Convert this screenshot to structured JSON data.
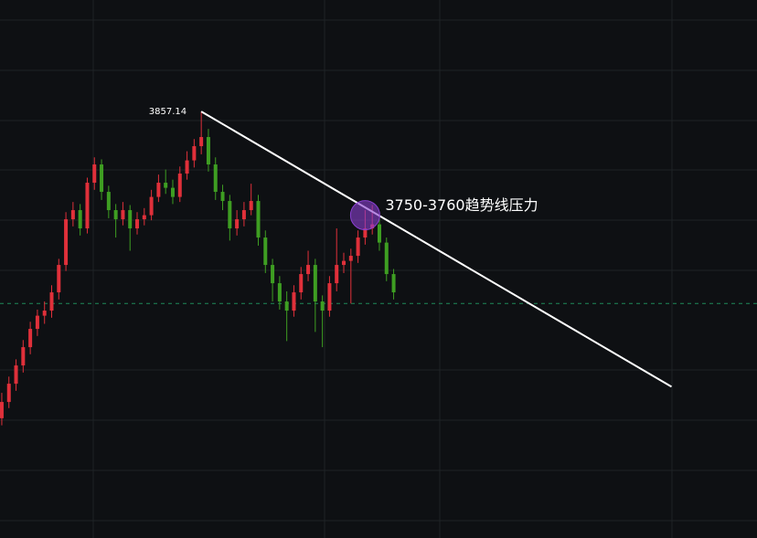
{
  "chart_data": {
    "type": "candlestick",
    "open": [
      3555,
      3571,
      3589,
      3607,
      3625,
      3643,
      3656,
      3661,
      3679,
      3706,
      3751,
      3760,
      3742,
      3787,
      3805,
      3778,
      3760,
      3751,
      3760,
      3742,
      3751,
      3755,
      3773,
      3787,
      3782,
      3773,
      3796,
      3809,
      3823,
      3832,
      3805,
      3778,
      3769,
      3742,
      3751,
      3760,
      3769,
      3733,
      3706,
      3688,
      3670,
      3661,
      3679,
      3697,
      3706,
      3670,
      3661,
      3688,
      3706,
      3710,
      3715,
      3733,
      3742,
      3746,
      3728,
      3697
    ],
    "high": [
      3580,
      3596,
      3613,
      3632,
      3650,
      3662,
      3670,
      3686,
      3712,
      3758,
      3768,
      3766,
      3792,
      3812,
      3810,
      3784,
      3766,
      3768,
      3765,
      3758,
      3762,
      3780,
      3795,
      3800,
      3790,
      3803,
      3818,
      3830,
      3857.14,
      3840,
      3812,
      3785,
      3775,
      3760,
      3768,
      3786,
      3775,
      3740,
      3712,
      3695,
      3680,
      3686,
      3704,
      3720,
      3712,
      3676,
      3695,
      3742,
      3718,
      3722,
      3740,
      3760,
      3765,
      3752,
      3733,
      3702
    ],
    "low": [
      3548,
      3565,
      3582,
      3600,
      3618,
      3636,
      3648,
      3654,
      3672,
      3700,
      3744,
      3735,
      3737,
      3780,
      3770,
      3752,
      3733,
      3745,
      3720,
      3736,
      3745,
      3750,
      3768,
      3776,
      3766,
      3768,
      3790,
      3802,
      3815,
      3798,
      3770,
      3760,
      3730,
      3735,
      3744,
      3755,
      3725,
      3698,
      3670,
      3662,
      3631,
      3655,
      3672,
      3690,
      3640,
      3625,
      3655,
      3680,
      3698,
      3668,
      3708,
      3726,
      3736,
      3720,
      3690,
      3672
    ],
    "close": [
      3571,
      3589,
      3607,
      3625,
      3643,
      3656,
      3661,
      3679,
      3706,
      3751,
      3760,
      3742,
      3787,
      3805,
      3778,
      3760,
      3751,
      3760,
      3742,
      3751,
      3755,
      3773,
      3787,
      3782,
      3773,
      3796,
      3809,
      3823,
      3832,
      3805,
      3778,
      3769,
      3742,
      3751,
      3760,
      3769,
      3733,
      3706,
      3688,
      3670,
      3661,
      3679,
      3697,
      3706,
      3670,
      3661,
      3688,
      3706,
      3710,
      3715,
      3733,
      3742,
      3746,
      3728,
      3697,
      3679
    ],
    "up_color": "#e0303a",
    "down_color": "#3e9e22",
    "xlim": [
      -0.25,
      106
    ],
    "ylim": [
      3437,
      3967
    ],
    "trendline": {
      "x": [
        28,
        94
      ],
      "y": [
        3857.14,
        3586
      ],
      "color": "#ffffff"
    },
    "price_line": {
      "value": 3668,
      "color": "#1f8a5a"
    },
    "annotation": {
      "text": "3750-3760趋势线压力",
      "x": 51,
      "y": 3755,
      "color": "#8a3fd0"
    }
  }
}
